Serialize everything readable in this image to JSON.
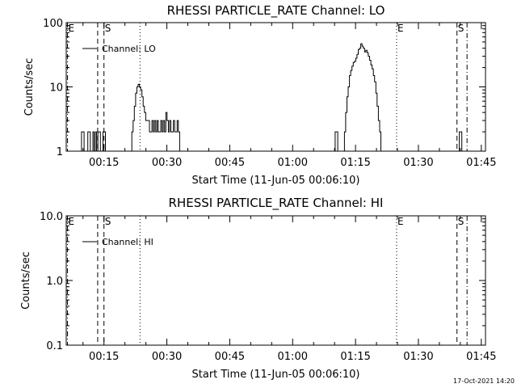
{
  "footer": {
    "timestamp": "17-Oct-2021 14:20"
  },
  "chart_data": [
    {
      "type": "line",
      "title": "RHESSI PARTICLE_RATE Channel: LO",
      "xlabel": "Start Time (11-Jun-05 00:06:10)",
      "ylabel": "Counts/sec",
      "yscale": "log",
      "xlim": [
        6,
        106
      ],
      "ylim": [
        1,
        100
      ],
      "xticks": [
        15,
        30,
        45,
        60,
        75,
        90,
        105
      ],
      "xtick_labels": [
        "00:15",
        "00:30",
        "00:45",
        "01:00",
        "01:15",
        "01:30",
        "01:45"
      ],
      "yticks": [
        1,
        10,
        100
      ],
      "ytick_labels": [
        "1",
        "10",
        "100"
      ],
      "legend": {
        "position": "top-left",
        "entries": [
          "Channel: LO"
        ]
      },
      "series": [
        {
          "name": "Channel: LO",
          "x": [
            9.5,
            9.8,
            10.1,
            10.4,
            10.7,
            11.0,
            11.3,
            11.6,
            11.9,
            12.2,
            12.5,
            12.8,
            13.1,
            13.4,
            13.7,
            14.0,
            14.3,
            14.6,
            14.9,
            15.2,
            15.5,
            15.8,
            21.5,
            21.8,
            22.1,
            22.4,
            22.7,
            23.0,
            23.3,
            23.6,
            23.9,
            24.2,
            24.5,
            24.8,
            25.1,
            25.4,
            25.7,
            26.0,
            26.3,
            26.6,
            26.9,
            27.2,
            27.5,
            27.8,
            28.1,
            28.4,
            28.7,
            29.0,
            29.3,
            29.6,
            29.9,
            30.2,
            30.5,
            30.8,
            31.1,
            31.4,
            31.7,
            32.0,
            32.3,
            32.6,
            32.9,
            33.2,
            33.5,
            33.8,
            70.0,
            70.3,
            70.6,
            70.9,
            71.2,
            72.2,
            72.5,
            72.8,
            73.1,
            73.4,
            73.7,
            74.0,
            74.3,
            74.6,
            74.9,
            75.2,
            75.5,
            75.8,
            76.1,
            76.4,
            76.7,
            77.0,
            77.3,
            77.6,
            77.9,
            78.2,
            78.5,
            78.8,
            79.1,
            79.4,
            79.7,
            80.0,
            80.3,
            80.6,
            80.9,
            81.2,
            81.5,
            99.6,
            99.9,
            100.2,
            100.5,
            100.8
          ],
          "y": [
            1,
            2,
            2,
            1,
            1,
            1,
            2,
            2,
            1,
            1,
            2,
            1,
            2,
            1,
            2,
            2,
            1,
            1,
            2,
            2,
            1,
            1,
            1,
            2,
            3,
            5,
            8,
            10,
            11,
            10,
            9,
            7,
            5,
            4,
            3,
            3,
            3,
            2,
            2,
            3,
            2,
            3,
            2,
            3,
            2,
            2,
            3,
            2,
            3,
            2,
            4,
            3,
            2,
            3,
            2,
            2,
            3,
            2,
            2,
            3,
            2,
            1,
            1,
            1,
            1,
            2,
            2,
            1,
            1,
            1,
            2,
            4,
            7,
            10,
            15,
            18,
            21,
            24,
            25,
            28,
            32,
            38,
            40,
            47,
            43,
            40,
            35,
            37,
            34,
            30,
            26,
            22,
            19,
            15,
            12,
            8,
            5,
            3,
            2,
            1,
            1,
            1,
            2,
            2,
            1,
            1
          ]
        }
      ],
      "markers": [
        {
          "x": 6.3,
          "style": "dash-dot",
          "label": "E"
        },
        {
          "x": 13.5,
          "style": "dashed",
          "label": ""
        },
        {
          "x": 15.0,
          "style": "dashed",
          "label": "S"
        },
        {
          "x": 23.6,
          "style": "dotted",
          "label": ""
        },
        {
          "x": 84.8,
          "style": "dotted",
          "label": "E"
        },
        {
          "x": 99.2,
          "style": "dashed",
          "label": "S"
        },
        {
          "x": 101.6,
          "style": "dash-dot",
          "label": ""
        }
      ]
    },
    {
      "type": "line",
      "title": "RHESSI PARTICLE_RATE Channel: HI",
      "xlabel": "Start Time (11-Jun-05 00:06:10)",
      "ylabel": "Counts/sec",
      "yscale": "log",
      "xlim": [
        6,
        106
      ],
      "ylim": [
        0.1,
        10
      ],
      "xticks": [
        15,
        30,
        45,
        60,
        75,
        90,
        105
      ],
      "xtick_labels": [
        "00:15",
        "00:30",
        "00:45",
        "01:00",
        "01:15",
        "01:30",
        "01:45"
      ],
      "yticks": [
        0.1,
        1,
        10
      ],
      "ytick_labels": [
        "0.1",
        "1.0",
        "10.0"
      ],
      "legend": {
        "position": "top-left",
        "entries": [
          "Channel: HI"
        ]
      },
      "series": [
        {
          "name": "Channel: HI",
          "x": [],
          "y": []
        }
      ],
      "markers": [
        {
          "x": 6.3,
          "style": "dash-dot",
          "label": "E"
        },
        {
          "x": 13.5,
          "style": "dashed",
          "label": ""
        },
        {
          "x": 15.0,
          "style": "dashed",
          "label": "S"
        },
        {
          "x": 23.6,
          "style": "dotted",
          "label": ""
        },
        {
          "x": 84.8,
          "style": "dotted",
          "label": "E"
        },
        {
          "x": 99.2,
          "style": "dashed",
          "label": "S"
        },
        {
          "x": 101.6,
          "style": "dash-dot",
          "label": ""
        }
      ]
    }
  ]
}
